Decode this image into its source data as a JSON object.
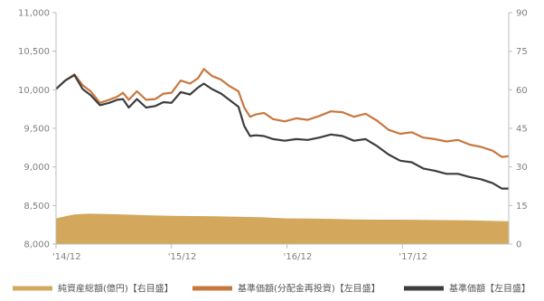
{
  "chart_data": {
    "type": "line",
    "title": "",
    "xlabel": "",
    "ylabel_left": "",
    "ylabel_right": "",
    "ylim_left": [
      8000,
      11000
    ],
    "yticks_left": [
      "8,000",
      "8,500",
      "9,000",
      "9,500",
      "10,000",
      "10,500",
      "11,000"
    ],
    "ylim_right": [
      0,
      90
    ],
    "yticks_right": [
      "0",
      "15",
      "30",
      "45",
      "60",
      "75",
      "90"
    ],
    "xlim": [
      2014.92,
      2018.84
    ],
    "xticks": [
      {
        "x": 2014.92,
        "label": "'14/12"
      },
      {
        "x": 2015.92,
        "label": "'15/12"
      },
      {
        "x": 2016.92,
        "label": "'16/12"
      },
      {
        "x": 2017.92,
        "label": "'17/12"
      }
    ],
    "grid": false,
    "legend_position": "bottom",
    "series": [
      {
        "name": "純資産総額(億円)【右目盛】",
        "kind": "area",
        "axis": "right",
        "color": "#d4a85c",
        "x": [
          2014.92,
          2015.0,
          2015.08,
          2015.2,
          2015.35,
          2015.5,
          2015.7,
          2015.92,
          2016.1,
          2016.3,
          2016.5,
          2016.7,
          2016.92,
          2017.1,
          2017.3,
          2017.5,
          2017.7,
          2017.92,
          2018.1,
          2018.3,
          2018.5,
          2018.7,
          2018.84
        ],
        "y": [
          10.0,
          10.8,
          11.5,
          11.8,
          11.7,
          11.5,
          11.2,
          11.0,
          10.9,
          10.8,
          10.6,
          10.4,
          10.0,
          9.9,
          9.8,
          9.6,
          9.5,
          9.5,
          9.4,
          9.3,
          9.2,
          9.0,
          8.9
        ]
      },
      {
        "name": "基準価額(分配金再投資)【左目盛】",
        "kind": "line",
        "axis": "left",
        "color": "#c8773e",
        "x": [
          2014.92,
          2015.0,
          2015.08,
          2015.15,
          2015.22,
          2015.3,
          2015.38,
          2015.45,
          2015.5,
          2015.55,
          2015.62,
          2015.7,
          2015.78,
          2015.85,
          2015.92,
          2016.0,
          2016.08,
          2016.15,
          2016.2,
          2016.27,
          2016.35,
          2016.42,
          2016.5,
          2016.55,
          2016.6,
          2016.65,
          2016.72,
          2016.8,
          2016.9,
          2017.0,
          2017.1,
          2017.2,
          2017.3,
          2017.4,
          2017.5,
          2017.6,
          2017.7,
          2017.8,
          2017.9,
          2018.0,
          2018.1,
          2018.2,
          2018.3,
          2018.4,
          2018.5,
          2018.6,
          2018.7,
          2018.78,
          2018.84
        ],
        "y": [
          10010,
          10120,
          10200,
          10060,
          9980,
          9830,
          9870,
          9910,
          9960,
          9870,
          9980,
          9870,
          9880,
          9950,
          9960,
          10120,
          10080,
          10150,
          10270,
          10180,
          10130,
          10050,
          9980,
          9770,
          9650,
          9680,
          9700,
          9620,
          9590,
          9630,
          9610,
          9660,
          9720,
          9710,
          9650,
          9690,
          9600,
          9480,
          9430,
          9450,
          9380,
          9360,
          9330,
          9350,
          9290,
          9260,
          9210,
          9130,
          9140
        ]
      },
      {
        "name": "基準価額【左目盛】",
        "kind": "line",
        "axis": "left",
        "color": "#3d3d3d",
        "x": [
          2014.92,
          2015.0,
          2015.08,
          2015.15,
          2015.22,
          2015.3,
          2015.38,
          2015.45,
          2015.5,
          2015.55,
          2015.62,
          2015.7,
          2015.78,
          2015.85,
          2015.92,
          2016.0,
          2016.08,
          2016.15,
          2016.2,
          2016.27,
          2016.35,
          2016.42,
          2016.5,
          2016.55,
          2016.6,
          2016.65,
          2016.72,
          2016.8,
          2016.9,
          2017.0,
          2017.1,
          2017.2,
          2017.3,
          2017.4,
          2017.5,
          2017.6,
          2017.7,
          2017.8,
          2017.9,
          2018.0,
          2018.1,
          2018.2,
          2018.3,
          2018.4,
          2018.5,
          2018.6,
          2018.7,
          2018.78,
          2018.84
        ],
        "y": [
          10010,
          10120,
          10190,
          10010,
          9930,
          9800,
          9830,
          9870,
          9880,
          9770,
          9880,
          9770,
          9790,
          9840,
          9830,
          9970,
          9940,
          10030,
          10080,
          10010,
          9950,
          9870,
          9780,
          9530,
          9400,
          9410,
          9400,
          9360,
          9340,
          9360,
          9350,
          9380,
          9420,
          9400,
          9340,
          9360,
          9270,
          9160,
          9080,
          9060,
          8980,
          8950,
          8910,
          8910,
          8870,
          8840,
          8790,
          8720,
          8720
        ]
      }
    ]
  }
}
